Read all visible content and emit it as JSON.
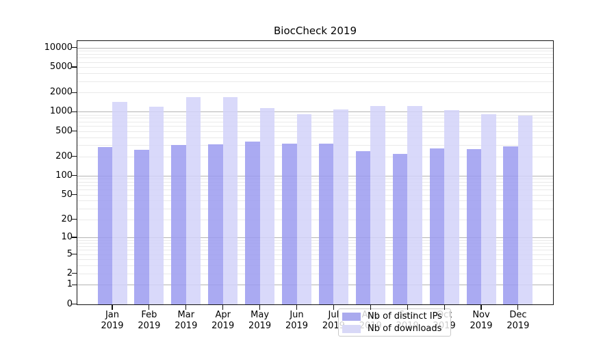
{
  "title": "BiocCheck 2019",
  "colors": {
    "ips_bar": "#9b9bf0",
    "downloads_bar": "#d2d2f9",
    "legend_ips_swatch": "#aaaaee",
    "legend_downloads_swatch": "#d8d8f7",
    "major_gridline": "#b3b3b3",
    "minor_gridline": "#e9e9e9"
  },
  "legend": [
    {
      "label": "Nb of distinct IPs",
      "color": "#aaaaee"
    },
    {
      "label": "Nb of downloads",
      "color": "#d8d8f7"
    }
  ],
  "chart_data": {
    "type": "bar",
    "title": "BiocCheck 2019",
    "categories": [
      "Jan",
      "Feb",
      "Mar",
      "Apr",
      "May",
      "Jun",
      "Jul",
      "Aug",
      "Sep",
      "Oct",
      "Nov",
      "Dec"
    ],
    "year_label": "2019",
    "series": [
      {
        "name": "Nb of distinct IPs",
        "values": [
          283,
          255,
          303,
          310,
          340,
          316,
          318,
          243,
          220,
          265,
          259,
          285
        ]
      },
      {
        "name": "Nb of downloads",
        "values": [
          1410,
          1210,
          1690,
          1680,
          1130,
          920,
          1100,
          1230,
          1230,
          1060,
          910,
          880
        ]
      }
    ],
    "y_scale": "log10(1+x)",
    "y_ticks": [
      0,
      1,
      2,
      5,
      10,
      20,
      50,
      100,
      200,
      500,
      1000,
      2000,
      5000,
      10000
    ],
    "ylim": [
      0,
      12700
    ],
    "xlabel": "",
    "ylabel": "",
    "grid": "horizontal log major+minor",
    "legend_position": "bottom-center-inside"
  }
}
